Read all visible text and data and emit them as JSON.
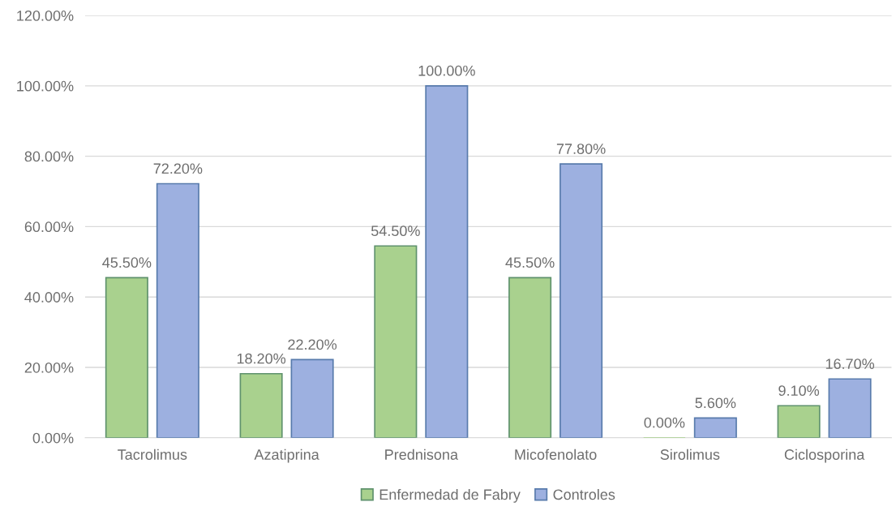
{
  "chart_data": {
    "type": "bar",
    "categories": [
      "Tacrolimus",
      "Azatiprina",
      "Prednisona",
      "Micofenolato",
      "Sirolimus",
      "Ciclosporina"
    ],
    "series": [
      {
        "name": "Enfermedad de Fabry",
        "color": "#a9d18e",
        "values": [
          45.5,
          18.2,
          54.5,
          45.5,
          0.0,
          9.1
        ],
        "value_labels": [
          "45.50%",
          "18.20%",
          "54.50%",
          "45.50%",
          "0.00%",
          "9.10%"
        ]
      },
      {
        "name": "Controles",
        "color": "#9db0e0",
        "values": [
          72.2,
          22.2,
          100.0,
          77.8,
          5.6,
          16.7
        ],
        "value_labels": [
          "72.20%",
          "22.20%",
          "100.00%",
          "77.80%",
          "5.60%",
          "16.70%"
        ]
      }
    ],
    "ylim": [
      0,
      120
    ],
    "yticks": [
      {
        "value": 0,
        "label": "0.00%"
      },
      {
        "value": 20,
        "label": "20.00%"
      },
      {
        "value": 40,
        "label": "40.00%"
      },
      {
        "value": 60,
        "label": "60.00%"
      },
      {
        "value": 80,
        "label": "80.00%"
      },
      {
        "value": 100,
        "label": "100.00%"
      },
      {
        "value": 120,
        "label": "120.00%"
      }
    ],
    "grid": "y",
    "legend": "bottom"
  }
}
